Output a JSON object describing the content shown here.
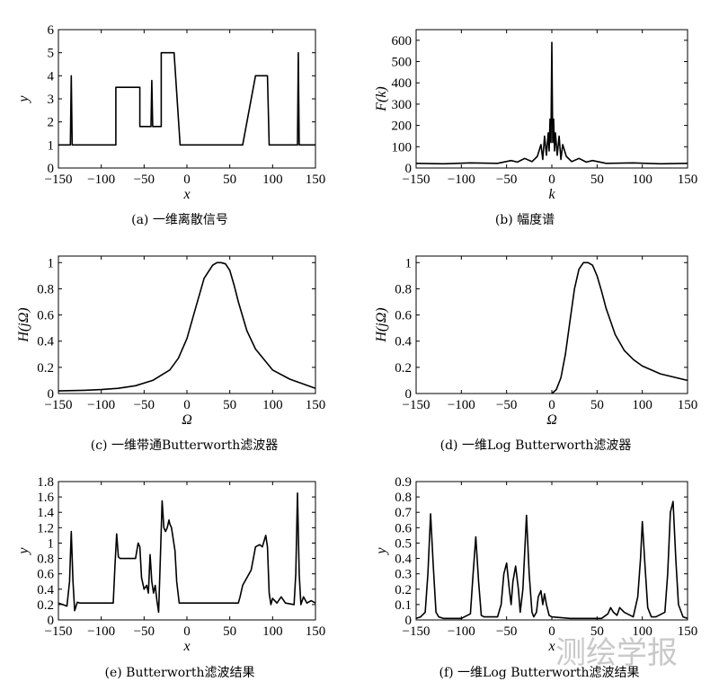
{
  "watermark": "测绘学报",
  "chart_data": [
    {
      "id": "a",
      "type": "line",
      "caption": "(a) 一维离散信号",
      "xlabel": "x",
      "ylabel": "y",
      "xlim": [
        -150,
        150
      ],
      "ylim": [
        0,
        6
      ],
      "xticks": [
        -150,
        -100,
        -50,
        0,
        50,
        100,
        150
      ],
      "yticks": [
        0,
        1,
        2,
        3,
        4,
        5,
        6
      ],
      "series": [
        {
          "x": [
            -150,
            -136,
            -135,
            -134,
            -83,
            -83,
            -55,
            -55,
            -42,
            -41,
            -40,
            -30,
            -30,
            -15,
            -8,
            65,
            80,
            94,
            96,
            129,
            130,
            131,
            150
          ],
          "y": [
            1,
            1,
            4,
            1,
            1,
            3.5,
            3.5,
            1.8,
            1.8,
            3.8,
            1.8,
            1.8,
            5,
            5,
            1,
            1,
            4,
            4,
            1,
            1,
            5,
            1,
            1
          ]
        }
      ]
    },
    {
      "id": "b",
      "type": "line",
      "caption": "(b) 幅度谱",
      "xlabel": "k",
      "ylabel": "F(k)",
      "xlim": [
        -150,
        150
      ],
      "ylim": [
        0,
        650
      ],
      "xticks": [
        -150,
        -100,
        -50,
        0,
        50,
        100,
        150
      ],
      "yticks": [
        0,
        100,
        200,
        300,
        400,
        500,
        600
      ],
      "series": [
        {
          "x": [
            -150,
            -120,
            -90,
            -60,
            -45,
            -38,
            -30,
            -22,
            -16,
            -12,
            -10,
            -8,
            -6,
            -4,
            -3,
            -2,
            -1,
            0,
            1,
            2,
            3,
            4,
            6,
            8,
            10,
            12,
            16,
            22,
            30,
            38,
            45,
            60,
            90,
            120,
            150
          ],
          "y": [
            22,
            20,
            24,
            22,
            35,
            28,
            45,
            30,
            55,
            110,
            40,
            150,
            60,
            165,
            80,
            230,
            120,
            590,
            120,
            230,
            80,
            165,
            60,
            150,
            40,
            110,
            55,
            30,
            45,
            28,
            35,
            22,
            24,
            20,
            22
          ]
        }
      ]
    },
    {
      "id": "c",
      "type": "line",
      "caption": "(c) 一维带通Butterworth滤波器",
      "xlabel": "Ω",
      "ylabel": "H(jΩ)",
      "xlim": [
        -150,
        150
      ],
      "ylim": [
        0,
        1.05
      ],
      "xticks": [
        -150,
        -100,
        -50,
        0,
        50,
        100,
        150
      ],
      "yticks": [
        0,
        0.2,
        0.4,
        0.6,
        0.8,
        1
      ],
      "series": [
        {
          "x": [
            -150,
            -120,
            -100,
            -80,
            -60,
            -40,
            -20,
            -10,
            0,
            10,
            20,
            30,
            35,
            40,
            45,
            50,
            55,
            60,
            70,
            80,
            100,
            120,
            150
          ],
          "y": [
            0.02,
            0.025,
            0.03,
            0.04,
            0.06,
            0.1,
            0.18,
            0.27,
            0.42,
            0.65,
            0.88,
            0.98,
            1.0,
            1.0,
            0.99,
            0.94,
            0.83,
            0.7,
            0.48,
            0.34,
            0.18,
            0.11,
            0.04
          ]
        }
      ]
    },
    {
      "id": "d",
      "type": "line",
      "caption": "(d) 一维Log Butterworth滤波器",
      "xlabel": "Ω",
      "ylabel": "H(jΩ)",
      "xlim": [
        -150,
        150
      ],
      "ylim": [
        0,
        1.05
      ],
      "xticks": [
        -150,
        -100,
        -50,
        0,
        50,
        100,
        150
      ],
      "yticks": [
        0,
        0.2,
        0.4,
        0.6,
        0.8,
        1
      ],
      "series": [
        {
          "x": [
            0,
            5,
            10,
            15,
            20,
            25,
            30,
            35,
            40,
            45,
            50,
            55,
            60,
            70,
            80,
            90,
            100,
            120,
            150
          ],
          "y": [
            0,
            0.03,
            0.12,
            0.3,
            0.55,
            0.8,
            0.95,
            1.0,
            1.0,
            0.98,
            0.9,
            0.78,
            0.65,
            0.45,
            0.33,
            0.26,
            0.21,
            0.15,
            0.1
          ]
        }
      ]
    },
    {
      "id": "e",
      "type": "line",
      "caption": "(e) Butterworth滤波结果",
      "xlabel": "x",
      "ylabel": "y",
      "xlim": [
        -150,
        150
      ],
      "ylim": [
        0,
        1.8
      ],
      "xticks": [
        -150,
        -100,
        -50,
        0,
        50,
        100,
        150
      ],
      "yticks": [
        0,
        0.2,
        0.4,
        0.6,
        0.8,
        1,
        1.2,
        1.4,
        1.6,
        1.8
      ],
      "series": [
        {
          "x": [
            -150,
            -145,
            -140,
            -137,
            -135,
            -133,
            -131,
            -128,
            -125,
            -100,
            -86,
            -84,
            -82,
            -80,
            -78,
            -75,
            -60,
            -57,
            -55,
            -53,
            -50,
            -47,
            -45,
            -43,
            -41,
            -39,
            -37,
            -35,
            -33,
            -31,
            -29,
            -27,
            -25,
            -23,
            -21,
            -20,
            -18,
            -14,
            -12,
            -9,
            -5,
            0,
            30,
            60,
            62,
            65,
            75,
            80,
            85,
            88,
            92,
            94,
            96,
            98,
            100,
            105,
            110,
            115,
            125,
            127,
            129,
            131,
            133,
            136,
            140,
            145,
            150
          ],
          "y": [
            0.22,
            0.2,
            0.18,
            0.5,
            1.15,
            0.5,
            0.12,
            0.23,
            0.22,
            0.22,
            0.22,
            0.7,
            1.12,
            0.82,
            0.8,
            0.8,
            0.8,
            1.0,
            0.95,
            0.55,
            0.4,
            0.45,
            0.35,
            0.85,
            0.5,
            0.35,
            0.45,
            0.25,
            0.1,
            0.8,
            1.55,
            1.2,
            1.15,
            1.2,
            1.3,
            1.25,
            1.2,
            0.9,
            0.5,
            0.22,
            0.22,
            0.22,
            0.22,
            0.22,
            0.3,
            0.45,
            0.65,
            0.95,
            0.98,
            0.95,
            1.1,
            0.95,
            0.35,
            0.2,
            0.28,
            0.22,
            0.3,
            0.22,
            0.2,
            0.6,
            1.65,
            0.6,
            0.2,
            0.3,
            0.22,
            0.25,
            0.22
          ]
        }
      ]
    },
    {
      "id": "f",
      "type": "line",
      "caption": "(f) 一维Log Butterworth滤波结果",
      "xlabel": "x",
      "ylabel": "y",
      "xlim": [
        -150,
        150
      ],
      "ylim": [
        0,
        0.9
      ],
      "xticks": [
        -150,
        -100,
        -50,
        0,
        50,
        100,
        150
      ],
      "yticks": [
        0,
        0.1,
        0.2,
        0.3,
        0.4,
        0.5,
        0.6,
        0.7,
        0.8,
        0.9
      ],
      "series": [
        {
          "x": [
            -150,
            -145,
            -140,
            -137,
            -134,
            -131,
            -128,
            -125,
            -120,
            -100,
            -90,
            -87,
            -84,
            -81,
            -78,
            -75,
            -70,
            -60,
            -56,
            -53,
            -50,
            -47,
            -45,
            -43,
            -40,
            -37,
            -35,
            -32,
            -28,
            -25,
            -22,
            -20,
            -17,
            -15,
            -12,
            -10,
            -8,
            -6,
            -3,
            0,
            20,
            55,
            62,
            65,
            68,
            72,
            75,
            80,
            90,
            95,
            98,
            100,
            103,
            106,
            110,
            115,
            125,
            128,
            131,
            134,
            137,
            140,
            145,
            150
          ],
          "y": [
            0.01,
            0.02,
            0.05,
            0.3,
            0.69,
            0.35,
            0.05,
            0.02,
            0.01,
            0.01,
            0.04,
            0.3,
            0.54,
            0.25,
            0.03,
            0.02,
            0.02,
            0.02,
            0.1,
            0.3,
            0.37,
            0.2,
            0.1,
            0.25,
            0.35,
            0.2,
            0.05,
            0.2,
            0.68,
            0.3,
            0.05,
            0.02,
            0.05,
            0.15,
            0.19,
            0.1,
            0.17,
            0.1,
            0.03,
            0.02,
            0.01,
            0.01,
            0.04,
            0.08,
            0.05,
            0.03,
            0.08,
            0.05,
            0.02,
            0.15,
            0.4,
            0.64,
            0.35,
            0.08,
            0.02,
            0.02,
            0.05,
            0.3,
            0.7,
            0.77,
            0.4,
            0.1,
            0.02,
            0.01
          ]
        }
      ]
    }
  ]
}
